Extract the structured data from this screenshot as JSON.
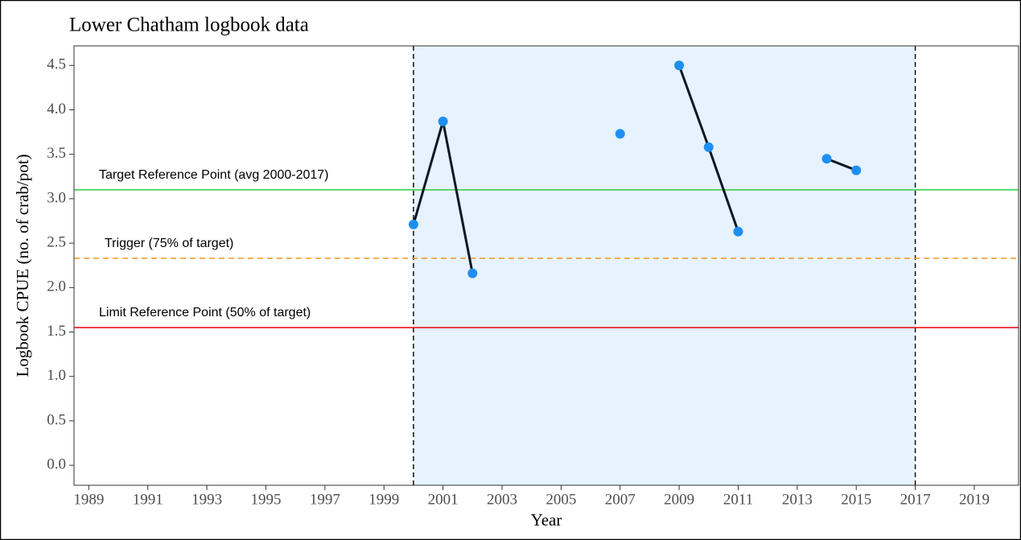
{
  "chart_data": {
    "type": "line",
    "title": "Lower Chatham logbook data",
    "x_label": "Year",
    "y_label": "Logbook CPUE (no. of crab/pot)",
    "x": [
      2000,
      2001,
      2002,
      2003,
      2004,
      2005,
      2006,
      2007,
      2008,
      2009,
      2010,
      2011,
      2012,
      2013,
      2014,
      2015
    ],
    "values": [
      2.71,
      3.87,
      2.16,
      null,
      null,
      null,
      null,
      3.73,
      null,
      4.5,
      3.58,
      2.63,
      null,
      null,
      3.45,
      3.32
    ],
    "line_color": "#0b1626",
    "point_color": "#1e8ff0",
    "xlim": [
      1988.5,
      2020.5
    ],
    "xticks": [
      1989,
      1991,
      1993,
      1995,
      1997,
      1999,
      2001,
      2003,
      2005,
      2007,
      2009,
      2011,
      2013,
      2015,
      2017,
      2019
    ],
    "ylim": [
      -0.225,
      4.72
    ],
    "yticks": [
      {
        "value": 0,
        "label": "0.0"
      },
      0.5,
      {
        "value": 1,
        "label": "1.0"
      },
      1.5,
      {
        "value": 2,
        "label": "2.0"
      },
      2.5,
      {
        "value": 3,
        "label": "3.0"
      },
      3.5,
      {
        "value": 4,
        "label": "4.0"
      },
      4.5
    ],
    "shaded_range": [
      2000,
      2017
    ],
    "shade_color": "#e6f2fd",
    "vlines": [
      2000,
      2017
    ],
    "hlines": [
      {
        "label": "Target Reference Point (avg 2000-2017)",
        "value": 3.1,
        "color": "#2ecc40",
        "dashed": false
      },
      {
        "label": "Trigger (75% of target)",
        "value": 2.33,
        "color": "#f0a030",
        "dashed": true
      },
      {
        "label": "Limit Reference Point (50% of target)",
        "value": 1.55,
        "color": "#e8161b",
        "dashed": false
      }
    ]
  }
}
